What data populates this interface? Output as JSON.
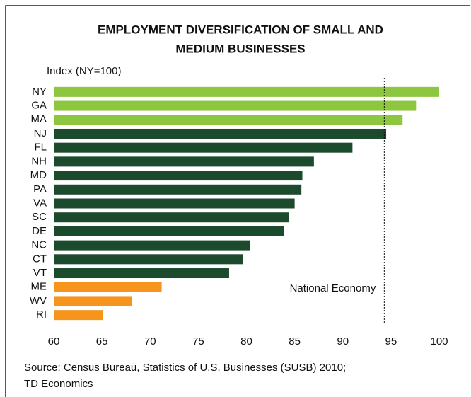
{
  "chart_data": {
    "type": "barh",
    "title": [
      "EMPLOYMENT DIVERSIFICATION OF SMALL AND",
      "MEDIUM BUSINESSES"
    ],
    "ylabel": "Index (NY=100)",
    "categories": [
      "NY",
      "GA",
      "MA",
      "NJ",
      "FL",
      "NH",
      "MD",
      "PA",
      "VA",
      "SC",
      "DE",
      "NC",
      "CT",
      "VT",
      "ME",
      "WV",
      "RI"
    ],
    "values": [
      100,
      97.6,
      96.2,
      94.5,
      91.0,
      87.0,
      85.8,
      85.7,
      85.0,
      84.4,
      83.9,
      80.4,
      79.6,
      78.2,
      71.2,
      68.1,
      65.1
    ],
    "colors": [
      "#8dc63f",
      "#8dc63f",
      "#8dc63f",
      "#1b4a2c",
      "#1b4a2c",
      "#1b4a2c",
      "#1b4a2c",
      "#1b4a2c",
      "#1b4a2c",
      "#1b4a2c",
      "#1b4a2c",
      "#1b4a2c",
      "#1b4a2c",
      "#1b4a2c",
      "#f7941d",
      "#f7941d",
      "#f7941d"
    ],
    "xlim": [
      60,
      100
    ],
    "xticks": [
      60,
      65,
      70,
      75,
      80,
      85,
      90,
      95,
      100
    ],
    "reference": {
      "value": 94.3,
      "label": "National Economy"
    },
    "source": [
      "Source: Census Bureau, Statistics of U.S. Businesses (SUSB) 2010;",
      "TD Economics"
    ]
  }
}
